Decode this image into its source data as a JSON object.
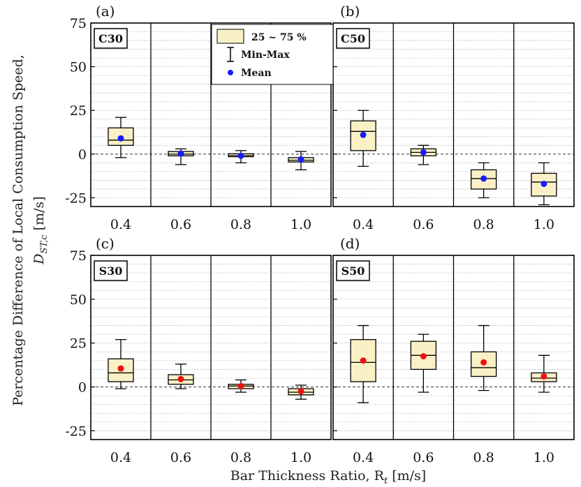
{
  "figure": {
    "ylabel_line1": "Percentage Difference of  Local Consumption Speed,",
    "ylabel_line2": "D",
    "ylabel_sub": "ST,c",
    "ylabel_unit": " [m/s]",
    "xlabel_main": "Bar Thickness Ratio, R",
    "xlabel_sub": "t",
    "xlabel_unit": " [m/s]",
    "legend": {
      "box_label": "25 ~ 75 %",
      "whisker_label": "Min-Max",
      "mean_label": "Mean"
    }
  },
  "colors": {
    "box_fill": "#f9f0c6",
    "mean_blue": "#1a1aff",
    "mean_red": "#ee1111",
    "grid": "#bbbbbb"
  },
  "chart_data": [
    {
      "panel": "(a)",
      "tag": "C30",
      "type": "box",
      "categories": [
        "0.4",
        "0.6",
        "0.8",
        "1.0"
      ],
      "ylim": [
        -30,
        75
      ],
      "yticks": [
        "75",
        "50",
        "25",
        "0",
        "-25"
      ],
      "mean_color": "blue",
      "boxes": [
        {
          "min": -2,
          "q1": 5,
          "median": 8,
          "q3": 15,
          "max": 21,
          "mean": 9
        },
        {
          "min": -6,
          "q1": -1,
          "median": 0,
          "q3": 1.5,
          "max": 3,
          "mean": 0.3
        },
        {
          "min": -5,
          "q1": -1.5,
          "median": -0.8,
          "q3": 0.2,
          "max": 2,
          "mean": -1
        },
        {
          "min": -9,
          "q1": -4.5,
          "median": -3.5,
          "q3": -2,
          "max": 1.5,
          "mean": -3
        }
      ]
    },
    {
      "panel": "(b)",
      "tag": "C50",
      "type": "box",
      "categories": [
        "0.4",
        "0.6",
        "0.8",
        "1.0"
      ],
      "ylim": [
        -30,
        75
      ],
      "yticks": [
        "75",
        "50",
        "25",
        "0",
        "-25"
      ],
      "mean_color": "blue",
      "boxes": [
        {
          "min": -7,
          "q1": 2,
          "median": 13,
          "q3": 19,
          "max": 25,
          "mean": 11
        },
        {
          "min": -6,
          "q1": -1,
          "median": 1,
          "q3": 3,
          "max": 5,
          "mean": 1
        },
        {
          "min": -25,
          "q1": -20,
          "median": -14,
          "q3": -9,
          "max": -5,
          "mean": -14
        },
        {
          "min": -29,
          "q1": -24,
          "median": -16,
          "q3": -11,
          "max": -5,
          "mean": -17
        }
      ]
    },
    {
      "panel": "(c)",
      "tag": "S30",
      "type": "box",
      "categories": [
        "0.4",
        "0.6",
        "0.8",
        "1.0"
      ],
      "ylim": [
        -30,
        75
      ],
      "yticks": [
        "75",
        "50",
        "25",
        "0",
        "-25"
      ],
      "mean_color": "red",
      "boxes": [
        {
          "min": -1,
          "q1": 3,
          "median": 8,
          "q3": 16,
          "max": 27,
          "mean": 10.5
        },
        {
          "min": -1,
          "q1": 1.5,
          "median": 4,
          "q3": 7,
          "max": 13,
          "mean": 4.5
        },
        {
          "min": -3,
          "q1": -1,
          "median": 0.5,
          "q3": 1.5,
          "max": 4,
          "mean": 0.5
        },
        {
          "min": -7,
          "q1": -4.5,
          "median": -3,
          "q3": -1,
          "max": 1,
          "mean": -2.5
        }
      ]
    },
    {
      "panel": "(d)",
      "tag": "S50",
      "type": "box",
      "categories": [
        "0.4",
        "0.6",
        "0.8",
        "1.0"
      ],
      "ylim": [
        -30,
        75
      ],
      "yticks": [
        "75",
        "50",
        "25",
        "0",
        "-25"
      ],
      "mean_color": "red",
      "boxes": [
        {
          "min": -9,
          "q1": 3,
          "median": 14,
          "q3": 27,
          "max": 35,
          "mean": 15
        },
        {
          "min": -3,
          "q1": 10,
          "median": 18,
          "q3": 26,
          "max": 30,
          "mean": 17.5
        },
        {
          "min": -2,
          "q1": 6,
          "median": 11,
          "q3": 20,
          "max": 35,
          "mean": 14
        },
        {
          "min": -3,
          "q1": 3,
          "median": 5,
          "q3": 8,
          "max": 18,
          "mean": 6
        }
      ]
    }
  ]
}
